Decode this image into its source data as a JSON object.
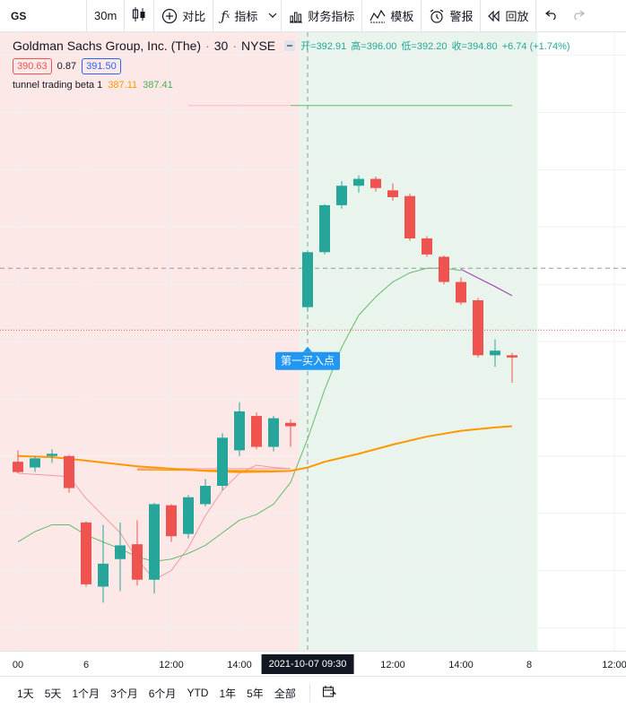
{
  "toolbar": {
    "symbol": "GS",
    "interval": "30m",
    "compare_label": "对比",
    "indicators_label": "指标",
    "financials_label": "财务指标",
    "templates_label": "模板",
    "alerts_label": "警报",
    "replay_label": "回放"
  },
  "legend": {
    "title": "Goldman Sachs Group, Inc. (The)",
    "interval": "30",
    "exchange": "NYSE",
    "open_label": "开=392.91",
    "high_label": "高=396.00",
    "low_label": "低=392.20",
    "close_label": "收=394.80",
    "change_label": "+6.74 (+1.74%)",
    "bid": "390.63",
    "spread": "0.87",
    "ask": "391.50",
    "indicator_name": "tunnel trading beta 1",
    "indicator_val1": "387.11",
    "indicator_val2": "387.41"
  },
  "colors": {
    "up": "#26a69a",
    "down": "#ef5350",
    "orange": "#ff9800",
    "green_line": "#66bb6a",
    "purple_line": "#ab47bc",
    "red_bg": "#fde8e8",
    "green_bg": "#e9f5ec",
    "annotation_bg": "#2196f3"
  },
  "chart_data": {
    "type": "candlestick",
    "annotation": "第一买入点",
    "candles": [
      {
        "o": 374.5,
        "h": 375.5,
        "l": 373.5,
        "c": 373.6
      },
      {
        "o": 374.0,
        "h": 375.0,
        "l": 373.6,
        "c": 374.8
      },
      {
        "o": 375.0,
        "h": 375.6,
        "l": 374.4,
        "c": 375.2
      },
      {
        "o": 375.0,
        "h": 375.1,
        "l": 371.8,
        "c": 372.2
      },
      {
        "o": 369.2,
        "h": 369.3,
        "l": 363.6,
        "c": 363.8
      },
      {
        "o": 363.6,
        "h": 369.0,
        "l": 362.2,
        "c": 365.6
      },
      {
        "o": 366.0,
        "h": 369.2,
        "l": 363.2,
        "c": 367.2
      },
      {
        "o": 367.3,
        "h": 369.4,
        "l": 363.7,
        "c": 364.2
      },
      {
        "o": 364.2,
        "h": 370.9,
        "l": 363.0,
        "c": 370.8
      },
      {
        "o": 370.7,
        "h": 370.8,
        "l": 367.5,
        "c": 368.0
      },
      {
        "o": 368.2,
        "h": 371.6,
        "l": 367.8,
        "c": 371.4
      },
      {
        "o": 370.8,
        "h": 373.0,
        "l": 370.6,
        "c": 372.4
      },
      {
        "o": 372.4,
        "h": 377.0,
        "l": 372.0,
        "c": 376.6
      },
      {
        "o": 375.5,
        "h": 379.7,
        "l": 375.0,
        "c": 378.9
      },
      {
        "o": 378.5,
        "h": 378.8,
        "l": 375.6,
        "c": 375.8
      },
      {
        "o": 375.8,
        "h": 378.5,
        "l": 375.4,
        "c": 378.3
      },
      {
        "o": 377.9,
        "h": 378.2,
        "l": 375.8,
        "c": 377.6
      },
      {
        "o": 388.0,
        "h": 392.8,
        "l": 387.6,
        "c": 392.8
      },
      {
        "o": 392.8,
        "h": 397.0,
        "l": 392.6,
        "c": 396.9
      },
      {
        "o": 396.9,
        "h": 399.0,
        "l": 396.6,
        "c": 398.6
      },
      {
        "o": 398.6,
        "h": 399.5,
        "l": 398.0,
        "c": 399.2
      },
      {
        "o": 399.2,
        "h": 399.4,
        "l": 398.1,
        "c": 398.4
      },
      {
        "o": 398.2,
        "h": 398.8,
        "l": 397.3,
        "c": 397.6
      },
      {
        "o": 397.7,
        "h": 397.9,
        "l": 393.8,
        "c": 394.0
      },
      {
        "o": 394.0,
        "h": 394.2,
        "l": 392.4,
        "c": 392.6
      },
      {
        "o": 392.4,
        "h": 392.5,
        "l": 390.0,
        "c": 390.2
      },
      {
        "o": 390.2,
        "h": 390.6,
        "l": 388.2,
        "c": 388.4
      },
      {
        "o": 388.6,
        "h": 388.8,
        "l": 383.6,
        "c": 383.8
      },
      {
        "o": 383.8,
        "h": 385.2,
        "l": 382.8,
        "c": 384.2
      },
      {
        "o": 383.8,
        "h": 384.0,
        "l": 381.4,
        "c": 383.6
      }
    ],
    "lines": {
      "orange": [
        [
          0,
          375.0
        ],
        [
          2,
          374.9
        ],
        [
          4,
          374.6
        ],
        [
          7,
          374.1
        ],
        [
          9,
          373.9
        ],
        [
          11,
          373.7
        ],
        [
          13,
          373.6
        ],
        [
          15,
          373.65
        ],
        [
          16,
          373.7
        ],
        [
          17,
          374.0
        ],
        [
          18,
          374.5
        ],
        [
          20,
          375.2
        ],
        [
          22,
          376.0
        ],
        [
          24,
          376.7
        ],
        [
          26,
          377.2
        ],
        [
          28,
          377.5
        ],
        [
          29,
          377.6
        ]
      ],
      "green": [
        [
          0,
          367.5
        ],
        [
          1,
          368.4
        ],
        [
          2,
          369.0
        ],
        [
          3,
          369.0
        ],
        [
          4,
          368.1
        ],
        [
          5,
          367.5
        ],
        [
          6,
          366.9
        ],
        [
          7,
          366.2
        ],
        [
          8,
          365.8
        ],
        [
          9,
          366.0
        ],
        [
          10,
          366.5
        ],
        [
          11,
          367.2
        ],
        [
          12,
          368.3
        ],
        [
          13,
          369.4
        ],
        [
          14,
          369.9
        ],
        [
          15,
          370.8
        ],
        [
          16,
          372.7
        ],
        [
          17,
          376.5
        ],
        [
          18,
          380.8
        ],
        [
          19,
          384.5
        ],
        [
          20,
          387.3
        ],
        [
          21,
          388.9
        ],
        [
          22,
          390.2
        ],
        [
          23,
          391.0
        ],
        [
          24,
          391.4
        ],
        [
          25,
          391.4
        ],
        [
          26,
          391.2
        ]
      ],
      "red": [
        [
          0,
          373.5
        ],
        [
          3,
          373.2
        ],
        [
          4,
          371.3
        ],
        [
          5,
          369.8
        ],
        [
          6,
          368.3
        ],
        [
          7,
          366.0
        ],
        [
          8,
          364.2
        ],
        [
          9,
          365.0
        ],
        [
          10,
          367.0
        ],
        [
          11,
          369.8
        ],
        [
          12,
          372.0
        ],
        [
          13,
          373.5
        ],
        [
          14,
          374.2
        ],
        [
          15,
          374.0
        ],
        [
          16,
          373.9
        ]
      ],
      "purple": [
        [
          26,
          391.3
        ],
        [
          28,
          389.8
        ],
        [
          29,
          389.0
        ]
      ],
      "red_flat": [
        [
          7,
          373.9
        ],
        [
          16,
          373.9
        ]
      ],
      "orange_flat": [
        [
          7,
          373.8
        ],
        [
          16,
          373.7
        ]
      ],
      "green_top": [
        [
          16,
          405.6
        ],
        [
          29,
          405.6
        ]
      ],
      "pink_top": [
        [
          10,
          405.6
        ],
        [
          16,
          405.6
        ]
      ]
    },
    "last_price_line": 386.0,
    "crosshair_price": 391.4,
    "crosshair_index": 17,
    "session_split_index": 16.5,
    "session_end_index": 30.5,
    "x_tick_labels": [
      "00",
      "6",
      "12:00",
      "14:00",
      "12:00",
      "14:00",
      "8",
      "12:00"
    ],
    "x_tick_indices": [
      0,
      4,
      9,
      13,
      22,
      26,
      30,
      35
    ],
    "current_time_label": "2021-10-07   09:30",
    "ylim": [
      358,
      412
    ],
    "grid": true
  },
  "bottom_bar": {
    "ranges": [
      "1天",
      "5天",
      "1个月",
      "3个月",
      "6个月",
      "YTD",
      "1年",
      "5年",
      "全部"
    ]
  }
}
